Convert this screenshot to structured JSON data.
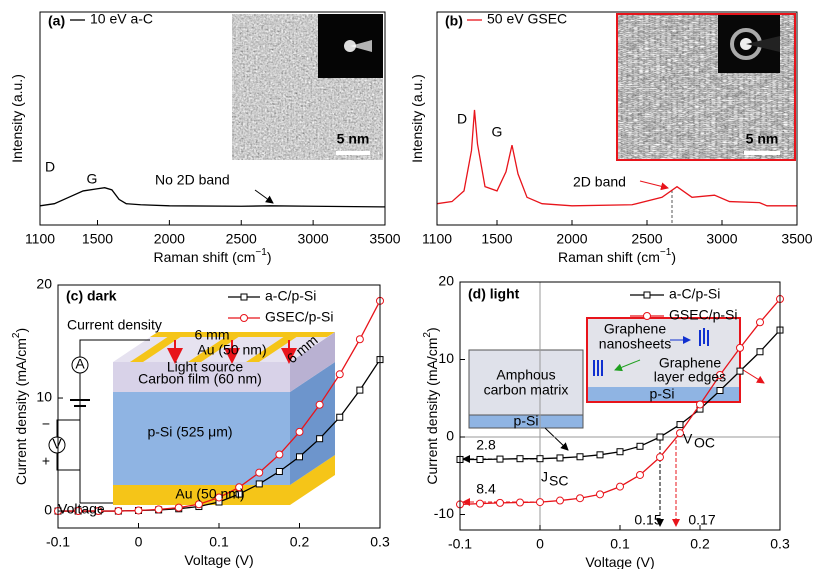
{
  "chart_data": [
    {
      "type": "line",
      "panel_label": "(a)",
      "x_label": [
        "Raman shift (cm",
        "−1",
        ")"
      ],
      "y_label": [
        "Intensity (a.u.)"
      ],
      "x": [
        1100,
        1200,
        1300,
        1400,
        1500,
        1550,
        1600,
        1650,
        1700,
        1800,
        2000,
        2500,
        2700,
        3000,
        3500
      ],
      "series": [
        {
          "name": "10 eV a-C",
          "color": "#000000",
          "values": [
            9,
            10,
            13,
            16,
            17,
            17.5,
            16.5,
            12,
            10,
            9.5,
            9,
            8.8,
            9,
            8.8,
            8.5
          ]
        }
      ],
      "xlim": [
        1100,
        3500
      ],
      "xticks": [
        1100,
        1500,
        2000,
        2500,
        3000,
        3500
      ],
      "ylim": [
        0,
        100
      ],
      "annotations": [
        "D",
        "G",
        "No 2D band",
        "5 nm"
      ]
    },
    {
      "type": "line",
      "panel_label": "(b)",
      "x_label": [
        "Raman shift (cm",
        "−1",
        ")"
      ],
      "y_label": [
        "Intensity (a.u.)"
      ],
      "x": [
        1100,
        1200,
        1280,
        1330,
        1350,
        1370,
        1420,
        1500,
        1560,
        1600,
        1640,
        1700,
        1800,
        2000,
        2400,
        2600,
        2700,
        2800,
        2950,
        3050,
        3250,
        3300,
        3500
      ],
      "series": [
        {
          "name": "50 eV GSEC",
          "color": "#e8141b",
          "values": [
            10,
            11,
            16,
            35,
            54,
            38,
            18,
            16,
            25,
            37.5,
            24,
            13,
            10,
            9,
            9.5,
            13,
            18,
            13,
            14,
            11,
            10.5,
            9,
            9
          ]
        }
      ],
      "xlim": [
        1100,
        3500
      ],
      "xticks": [
        1100,
        1500,
        2000,
        2500,
        3000,
        3500
      ],
      "ylim": [
        0,
        100
      ],
      "annotations": [
        "D",
        "G",
        "2D band",
        "5 nm"
      ]
    },
    {
      "type": "line",
      "panel_label": "(c) dark",
      "x_label": [
        "Voltage (V)"
      ],
      "y_label": [
        "Current density (mA/cm",
        "2",
        ")"
      ],
      "x": [
        -0.1,
        -0.075,
        -0.05,
        -0.025,
        0,
        0.025,
        0.05,
        0.075,
        0.1,
        0.125,
        0.15,
        0.175,
        0.2,
        0.225,
        0.25,
        0.275,
        0.3
      ],
      "series": [
        {
          "name": "a-C/p-Si",
          "color": "#000000",
          "marker": "square",
          "values": [
            0,
            0,
            0,
            0,
            0.05,
            0.1,
            0.2,
            0.4,
            0.8,
            1.5,
            2.4,
            3.5,
            4.8,
            6.4,
            8.3,
            10.7,
            13.4
          ]
        },
        {
          "name": "GSEC/p-Si",
          "color": "#e8141b",
          "marker": "circle",
          "values": [
            0,
            0,
            0,
            0,
            0.05,
            0.15,
            0.3,
            0.6,
            1.2,
            2.1,
            3.4,
            5,
            7,
            9.4,
            12.1,
            15.2,
            18.6
          ]
        }
      ],
      "xlim": [
        -0.1,
        0.3
      ],
      "xticks": [
        -0.1,
        0,
        0.1,
        0.2,
        0.3
      ],
      "ylim": [
        -1.5,
        20
      ],
      "yticks": [
        0,
        10,
        20
      ],
      "annotations": [
        "Current density",
        "6 mm",
        "Au (50 nm)",
        "Light source",
        "6 mm",
        "Carbon film (60 nm)",
        "p-Si (525 μm)",
        "Au (50 nm)",
        "Voltage",
        "A",
        "V",
        "−",
        "+"
      ]
    },
    {
      "type": "line",
      "panel_label": "(d) light",
      "zero_lines": true,
      "x_label": [
        "Voltage (V)"
      ],
      "y_label": [
        "Current density (mA/cm",
        "2",
        ")"
      ],
      "x": [
        -0.1,
        -0.075,
        -0.05,
        -0.025,
        0,
        0.025,
        0.05,
        0.075,
        0.1,
        0.125,
        0.15,
        0.175,
        0.2,
        0.225,
        0.25,
        0.275,
        0.3
      ],
      "series": [
        {
          "name": "a-C/p-Si",
          "color": "#000000",
          "marker": "square",
          "values": [
            -2.9,
            -2.9,
            -2.85,
            -2.8,
            -2.8,
            -2.7,
            -2.55,
            -2.3,
            -1.9,
            -1.2,
            0,
            1.6,
            3.6,
            6,
            8.5,
            11,
            13.8
          ]
        },
        {
          "name": "GSEC/p-Si",
          "color": "#e8141b",
          "marker": "circle",
          "values": [
            -8.7,
            -8.6,
            -8.5,
            -8.45,
            -8.4,
            -8.2,
            -7.9,
            -7.4,
            -6.4,
            -4.9,
            -2.6,
            0.5,
            4.2,
            8,
            11.5,
            14.8,
            17.8
          ]
        }
      ],
      "xlim": [
        -0.1,
        0.3
      ],
      "xticks": [
        -0.1,
        0,
        0.1,
        0.2,
        0.3
      ],
      "ylim": [
        -12,
        20
      ],
      "yticks": [
        -10,
        0,
        10,
        20
      ],
      "annotations": [
        "2.8",
        "8.4",
        "0.15",
        "0.17",
        "V",
        "OC",
        "J",
        "SC",
        "Amphous",
        "carbon matrix",
        "p-Si",
        "Graphene",
        "nanosheets",
        "Graphene",
        "layer edges",
        "p-Si"
      ]
    }
  ]
}
